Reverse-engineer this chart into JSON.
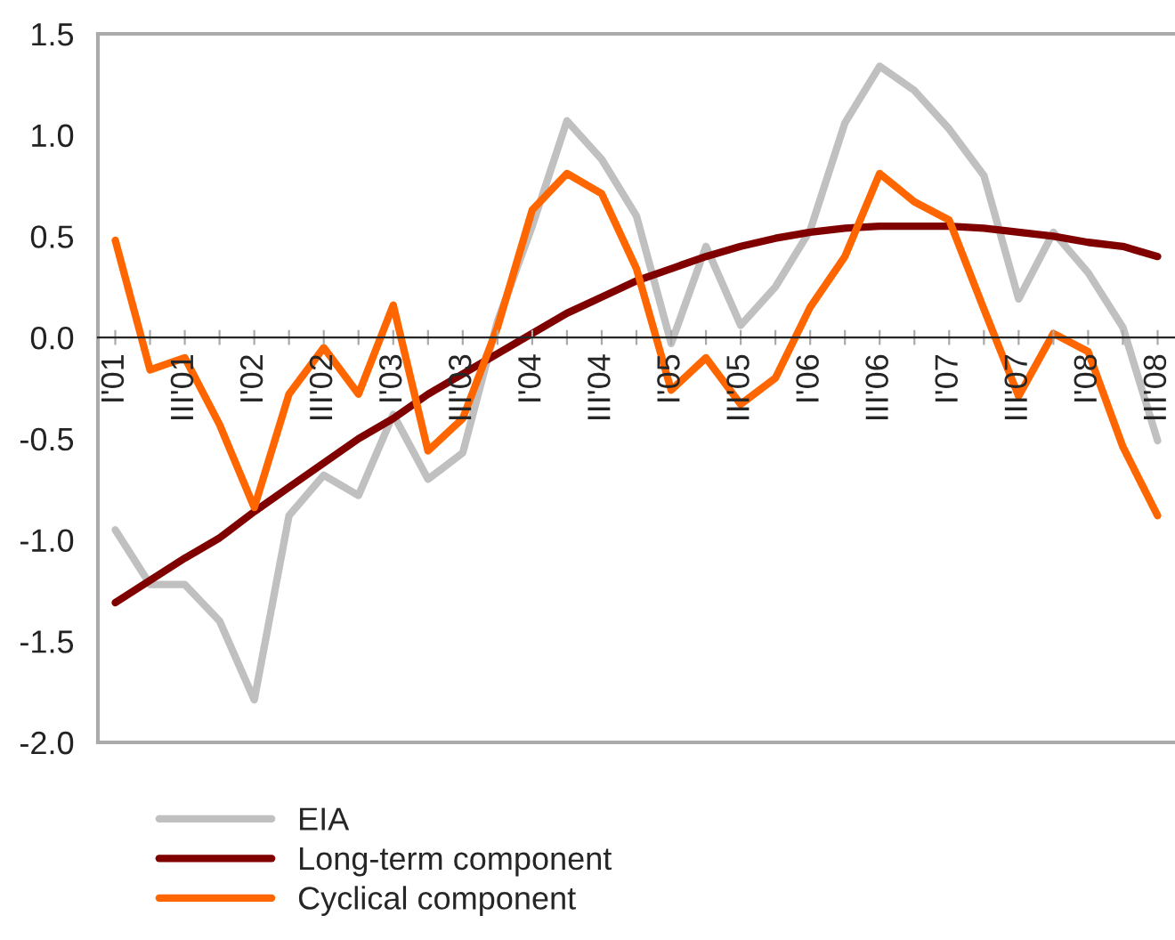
{
  "chart_data": {
    "type": "line",
    "categories": [
      "I'01",
      null,
      "III'01",
      null,
      "I'02",
      null,
      "III'02",
      null,
      "I'03",
      null,
      "III'03",
      null,
      "I'04",
      null,
      "III'04",
      null,
      "I'05",
      null,
      "III'05",
      null,
      "I'06",
      null,
      "III'06",
      null,
      "I'07",
      null,
      "III'07",
      null,
      "I'08",
      null,
      "III'08"
    ],
    "series": [
      {
        "name": "EIA",
        "color": "#c0c0c0",
        "values": [
          -0.95,
          -1.22,
          -1.22,
          -1.4,
          -1.79,
          -0.88,
          -0.68,
          -0.78,
          -0.38,
          -0.7,
          -0.57,
          0.08,
          0.55,
          1.07,
          0.88,
          0.6,
          -0.03,
          0.45,
          0.06,
          0.25,
          0.53,
          1.06,
          1.34,
          1.22,
          1.03,
          0.8,
          0.19,
          0.52,
          0.32,
          0.05,
          -0.51
        ]
      },
      {
        "name": "Long-term component",
        "color": "#800000",
        "values": [
          -1.31,
          -1.2,
          -1.09,
          -0.99,
          -0.86,
          -0.74,
          -0.62,
          -0.5,
          -0.4,
          -0.28,
          -0.18,
          -0.08,
          0.02,
          0.12,
          0.2,
          0.28,
          0.34,
          0.4,
          0.45,
          0.49,
          0.52,
          0.54,
          0.55,
          0.55,
          0.55,
          0.54,
          0.52,
          0.5,
          0.47,
          0.45,
          0.4
        ]
      },
      {
        "name": "Cyclical component",
        "color": "#ff6600",
        "values": [
          0.48,
          -0.16,
          -0.1,
          -0.43,
          -0.84,
          -0.28,
          -0.05,
          -0.28,
          0.16,
          -0.56,
          -0.4,
          0.05,
          0.63,
          0.81,
          0.71,
          0.34,
          -0.26,
          -0.1,
          -0.33,
          -0.2,
          0.15,
          0.4,
          0.81,
          0.67,
          0.58,
          0.14,
          -0.29,
          0.02,
          -0.07,
          -0.54,
          -0.88
        ]
      }
    ],
    "ylim": [
      -2.0,
      1.5
    ],
    "yticks": [
      {
        "value": -2.0,
        "label": "-2.0"
      },
      {
        "value": -1.5,
        "label": "-1.5"
      },
      {
        "value": -1.0,
        "label": "-1.0"
      },
      {
        "value": -0.5,
        "label": "-0.5"
      },
      {
        "value": 0.0,
        "label": "0.0"
      },
      {
        "value": 0.5,
        "label": "0.5"
      },
      {
        "value": 1.0,
        "label": "1.0"
      },
      {
        "value": 1.5,
        "label": "1.5"
      }
    ],
    "grid": false,
    "legend": "bottom left",
    "marker": "none",
    "line_style": "solid"
  }
}
